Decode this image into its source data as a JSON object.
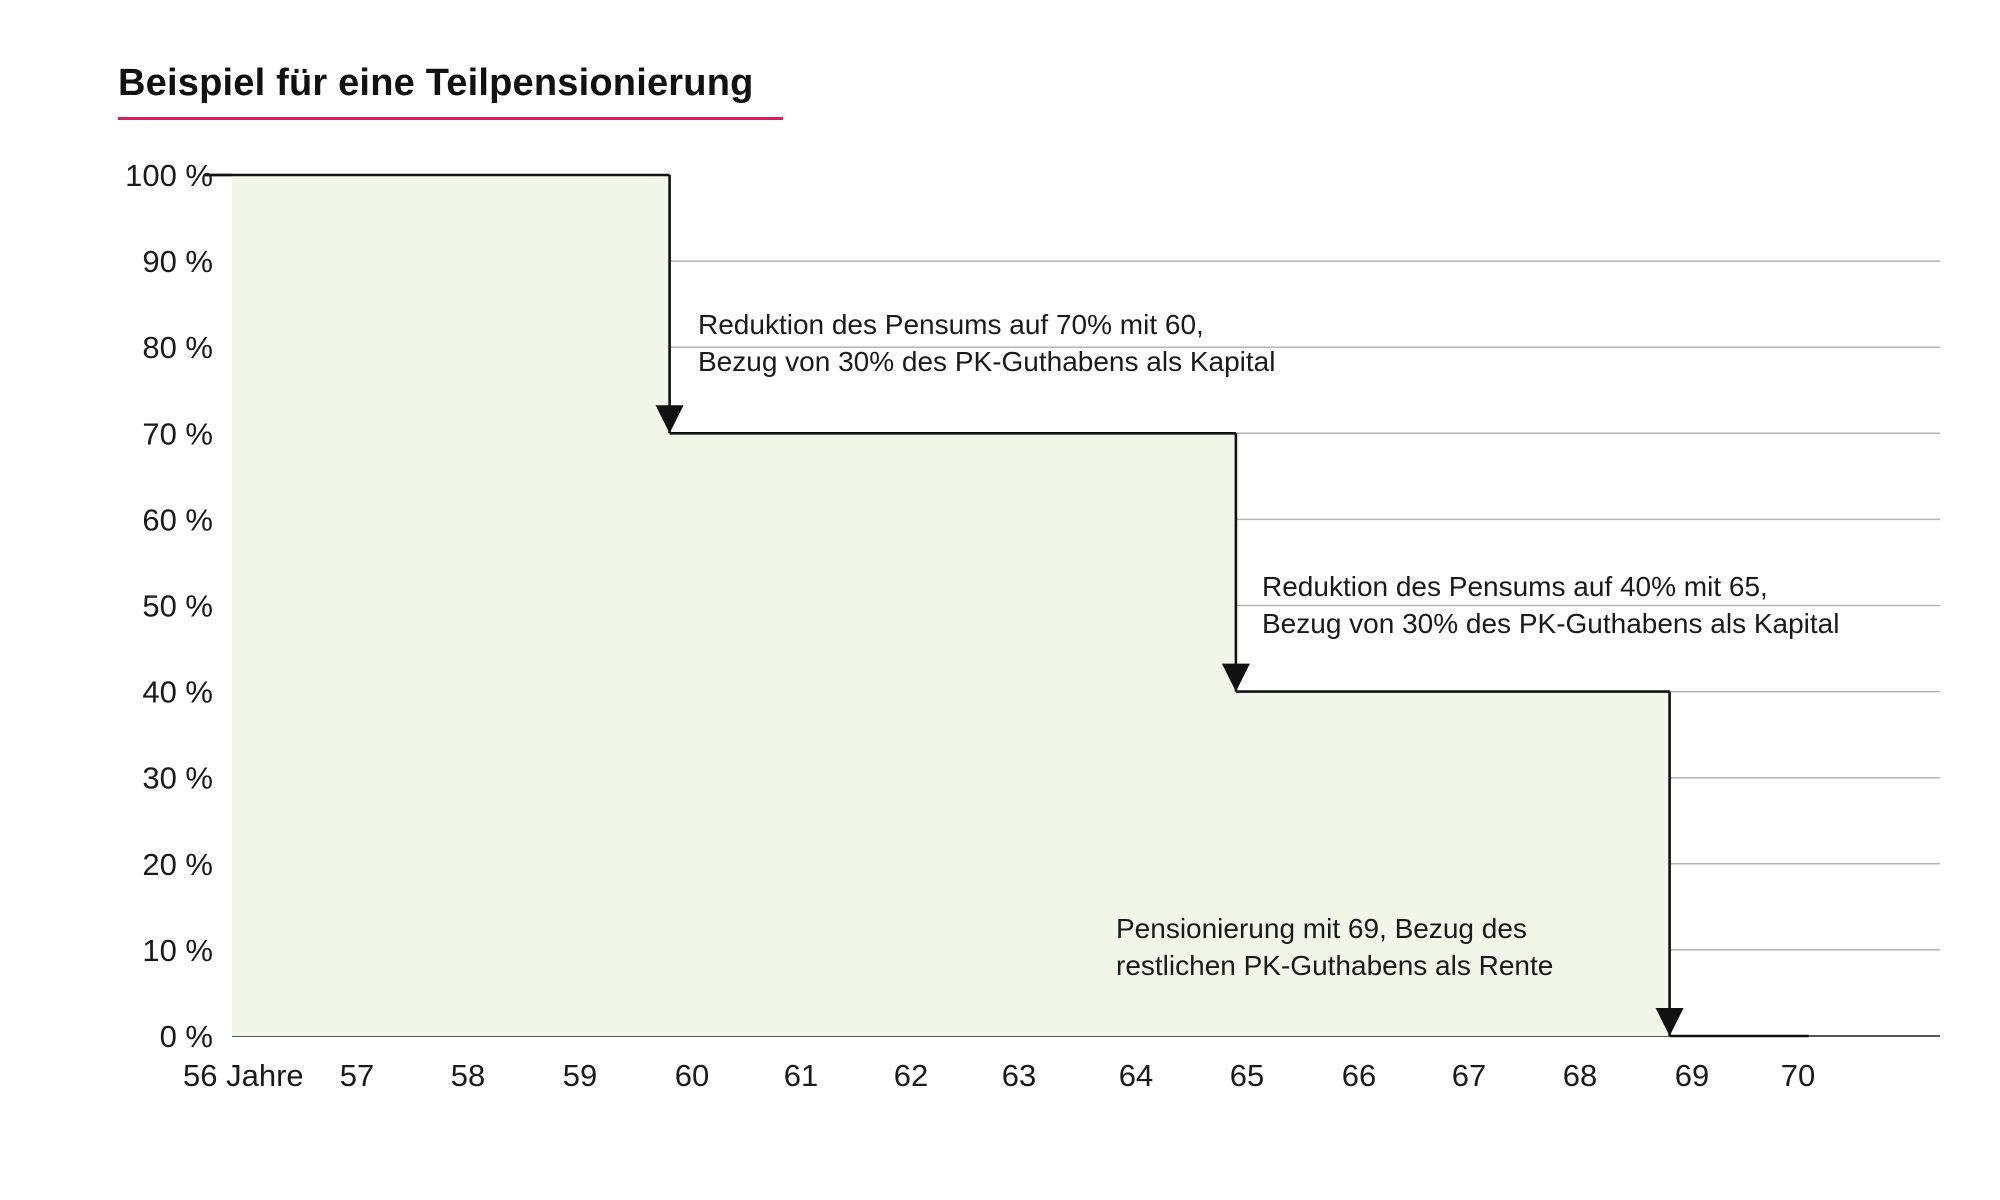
{
  "chart_data": {
    "type": "area",
    "title": "Beispiel für eine Teilpensionierung",
    "x_unit": "Jahre",
    "x_ticks": [
      56,
      57,
      58,
      59,
      60,
      61,
      62,
      63,
      64,
      65,
      66,
      67,
      68,
      69,
      70
    ],
    "x_tick_labels": [
      "56 Jahre",
      "57",
      "58",
      "59",
      "60",
      "61",
      "62",
      "63",
      "64",
      "65",
      "66",
      "67",
      "68",
      "69",
      "70"
    ],
    "y_ticks": [
      0,
      10,
      20,
      30,
      40,
      50,
      60,
      70,
      80,
      90,
      100
    ],
    "y_tick_labels": [
      "0 %",
      "10 %",
      "20 %",
      "30 %",
      "40 %",
      "50 %",
      "60 %",
      "70 %",
      "80 %",
      "90 %",
      "100 %"
    ],
    "ylim": [
      0,
      100
    ],
    "grid": true,
    "series": [
      {
        "step_points": [
          {
            "x": 56,
            "y": 100
          },
          {
            "x": 59.8,
            "y": 100
          },
          {
            "x": 59.8,
            "y": 70
          },
          {
            "x": 64.9,
            "y": 70
          },
          {
            "x": 64.9,
            "y": 40
          },
          {
            "x": 68.8,
            "y": 40
          },
          {
            "x": 68.8,
            "y": 0
          },
          {
            "x": 70.1,
            "y": 0
          }
        ]
      }
    ],
    "annotations": [
      {
        "lines": [
          "Reduktion des Pensums auf 70% mit 60,",
          "Bezug von 30% des PK-Guthabens als Kapital"
        ],
        "x": 59.8,
        "from": 100,
        "to": 70
      },
      {
        "lines": [
          "Reduktion des Pensums auf 40% mit 65,",
          "Bezug von 30% des PK-Guthabens als Kapital"
        ],
        "x": 64.9,
        "from": 70,
        "to": 40
      },
      {
        "lines": [
          "Pensionierung mit 69, Bezug des",
          "restlichen PK-Guthabens als Rente"
        ],
        "x": 68.8,
        "from": 40,
        "to": 0
      }
    ]
  },
  "colors": {
    "fill": "#f2f6e8",
    "line": "#111111",
    "grid": "#b3b3b3",
    "axis": "#555555",
    "title_rule": "#d61f5f"
  }
}
